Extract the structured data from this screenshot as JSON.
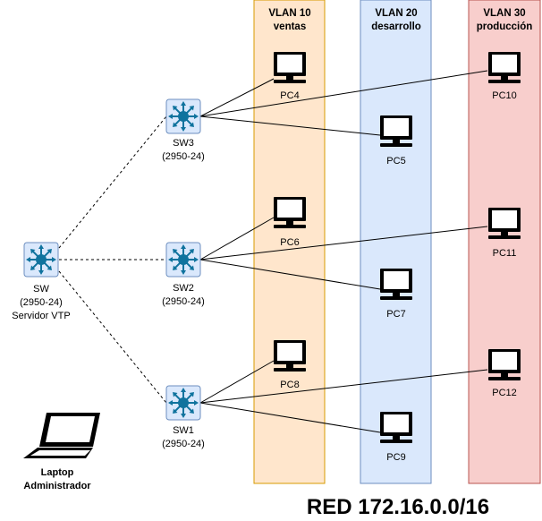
{
  "vlans": [
    {
      "id": "vlan10",
      "line1": "VLAN 10",
      "line2": "ventas",
      "fill": "#ffe6cc",
      "stroke": "#d79b00"
    },
    {
      "id": "vlan20",
      "line1": "VLAN 20",
      "line2": "desarrollo",
      "fill": "#dae8fc",
      "stroke": "#6c8ebf"
    },
    {
      "id": "vlan30",
      "line1": "VLAN 30",
      "line2": "producción",
      "fill": "#f8cecc",
      "stroke": "#b85450"
    }
  ],
  "switches": {
    "core": {
      "name": "SW",
      "model": "(2950-24)",
      "role": "Servidor VTP"
    },
    "sw3": {
      "name": "SW3",
      "model": "(2950-24)"
    },
    "sw2": {
      "name": "SW2",
      "model": "(2950-24)"
    },
    "sw1": {
      "name": "SW1",
      "model": "(2950-24)"
    }
  },
  "pcs": {
    "pc4": "PC4",
    "pc5": "PC5",
    "pc10": "PC10",
    "pc6": "PC6",
    "pc7": "PC7",
    "pc11": "PC11",
    "pc8": "PC8",
    "pc9": "PC9",
    "pc12": "PC12"
  },
  "laptop": {
    "line1": "Laptop",
    "line2": "Administrador"
  },
  "network_title": "RED 172.16.0.0/16",
  "colors": {
    "switch_fill": "#dae8fc",
    "switch_stroke": "#6c8ebf",
    "switch_arrows": "#10739e",
    "pc_screen": "#ffffff"
  },
  "icons": {
    "switch": "switch-icon",
    "pc": "pc-icon",
    "laptop": "laptop-icon"
  }
}
